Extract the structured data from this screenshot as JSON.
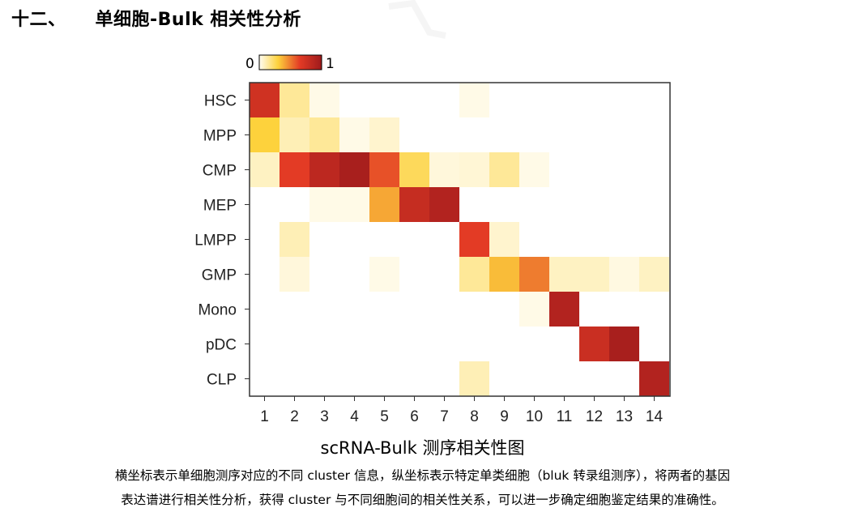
{
  "heading": {
    "number": "十二、",
    "title": "单细胞-Bulk 相关性分析"
  },
  "colors": {
    "low": "#fffdf3",
    "mid": "#fdd23c",
    "high": "#9e1a1c"
  },
  "chart_data": {
    "type": "heatmap",
    "title": "",
    "xlabel": "scRNA-Bulk 测序相关性图",
    "ylabel": "",
    "legend": {
      "min_label": "0",
      "max_label": "1",
      "placement": "top-left"
    },
    "x": [
      "1",
      "2",
      "3",
      "4",
      "5",
      "6",
      "7",
      "8",
      "9",
      "10",
      "11",
      "12",
      "13",
      "14"
    ],
    "y": [
      "HSC",
      "MPP",
      "CMP",
      "MEP",
      "LMPP",
      "GMP",
      "Mono",
      "pDC",
      "CLP"
    ],
    "values": [
      [
        0.75,
        0.15,
        0.02,
        0,
        0,
        0,
        0,
        0.02,
        0,
        0,
        0,
        0,
        0,
        0
      ],
      [
        0.3,
        0.1,
        0.15,
        0.02,
        0.06,
        0,
        0,
        0,
        0,
        0,
        0,
        0,
        0,
        0
      ],
      [
        0.08,
        0.65,
        0.85,
        0.95,
        0.6,
        0.25,
        0.04,
        0.05,
        0.15,
        0.02,
        0,
        0,
        0,
        0
      ],
      [
        0,
        0,
        0.02,
        0.02,
        0.4,
        0.8,
        0.9,
        0,
        0,
        0,
        0,
        0,
        0,
        0
      ],
      [
        0,
        0.1,
        0,
        0,
        0,
        0,
        0,
        0.65,
        0.06,
        0,
        0,
        0,
        0,
        0
      ],
      [
        0,
        0.04,
        0,
        0,
        0.02,
        0,
        0,
        0.15,
        0.35,
        0.5,
        0.08,
        0.08,
        0.03,
        0.08
      ],
      [
        0,
        0,
        0,
        0,
        0,
        0,
        0,
        0,
        0,
        0.02,
        0.9,
        0,
        0,
        0
      ],
      [
        0,
        0,
        0,
        0,
        0,
        0,
        0,
        0,
        0,
        0,
        0,
        0.78,
        0.95,
        0
      ],
      [
        0,
        0,
        0,
        0,
        0,
        0,
        0,
        0.1,
        0,
        0,
        0,
        0,
        0,
        0.9
      ]
    ]
  },
  "caption": {
    "line1": "横坐标表示单细胞测序对应的不同 cluster 信息，纵坐标表示特定单类细胞（bluk 转录组测序），将两者的基因",
    "line2": "表达谱进行相关性分析，获得 cluster 与不同细胞间的相关性关系，可以进一步确定细胞鉴定结果的准确性。"
  }
}
